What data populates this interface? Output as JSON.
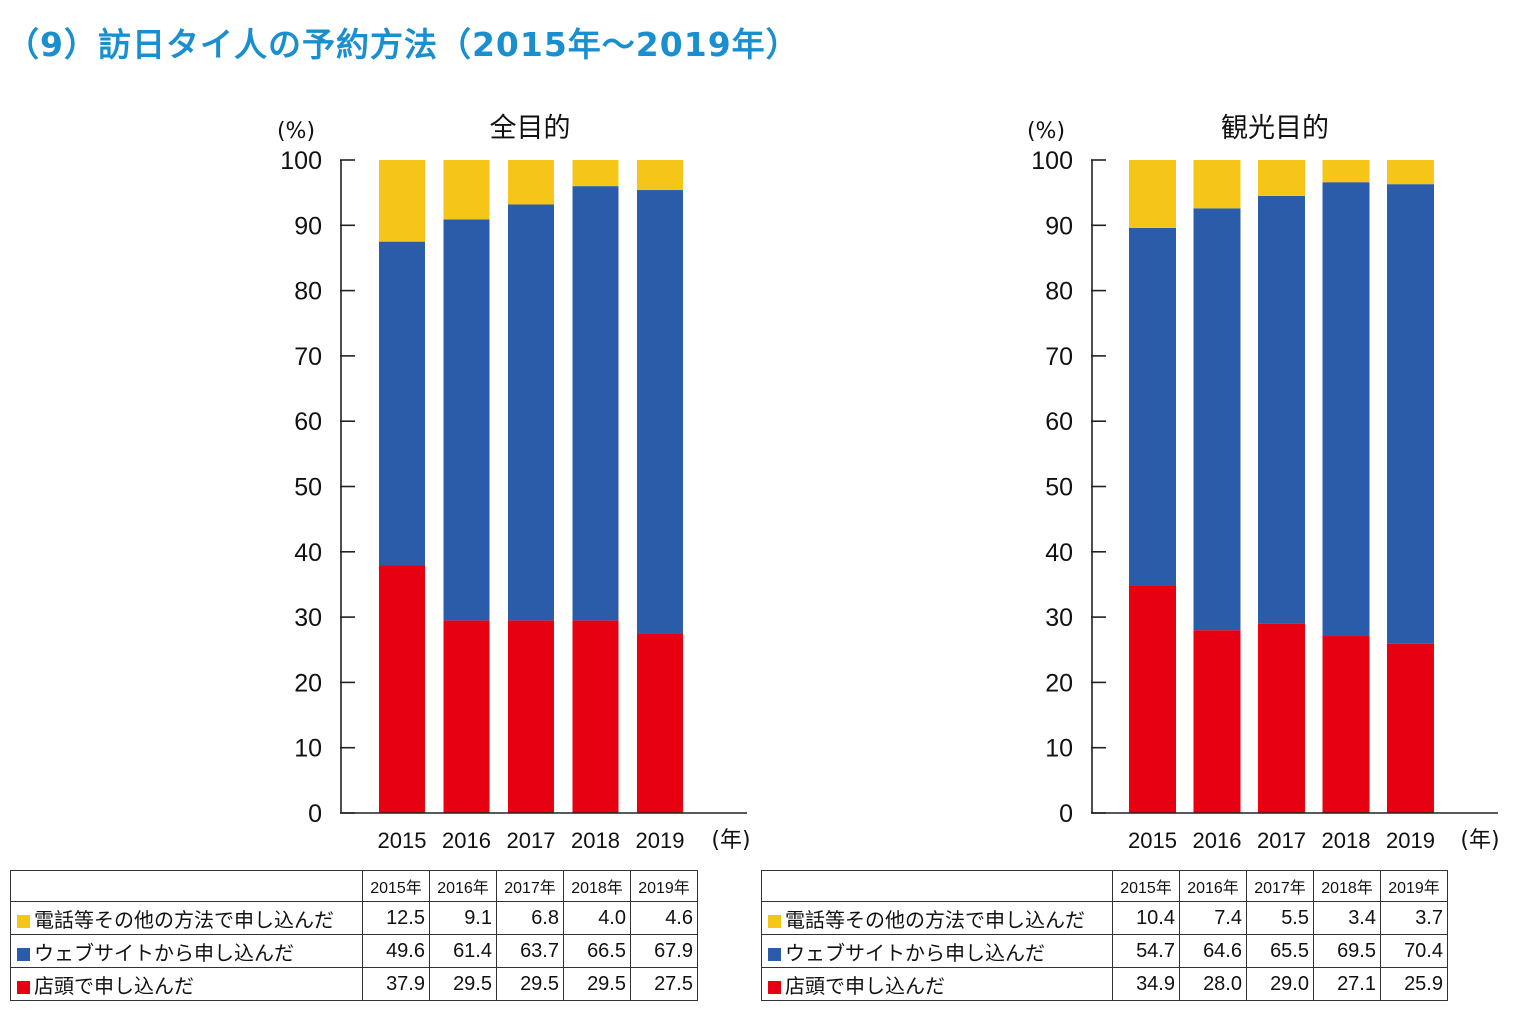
{
  "page": {
    "title": "（9）訪日タイ人の予約方法（2015年～2019年）"
  },
  "chart_data": [
    {
      "type": "bar",
      "stacked": true,
      "title": "全目的",
      "ylabel": "(%)",
      "xlabel": "(年)",
      "ylim": [
        0,
        100
      ],
      "yticks": [
        0,
        10,
        20,
        30,
        40,
        50,
        60,
        70,
        80,
        90,
        100
      ],
      "categories": [
        "2015",
        "2016",
        "2017",
        "2018",
        "2019"
      ],
      "table_headers": [
        "2015年",
        "2016年",
        "2017年",
        "2018年",
        "2019年"
      ],
      "series": [
        {
          "name": "店頭で申し込んだ",
          "color": "#e60012",
          "values": [
            "37.9",
            "29.5",
            "29.5",
            "29.5",
            "27.5"
          ]
        },
        {
          "name": "ウェブサイトから申し込んだ",
          "color": "#2a5caa",
          "values": [
            "49.6",
            "61.4",
            "63.7",
            "66.5",
            "67.9"
          ]
        },
        {
          "name": "電話等その他の方法で申し込んだ",
          "color": "#f5c518",
          "values": [
            "12.5",
            "9.1",
            "6.8",
            "4.0",
            "4.6"
          ]
        }
      ]
    },
    {
      "type": "bar",
      "stacked": true,
      "title": "観光目的",
      "ylabel": "(%)",
      "xlabel": "(年)",
      "ylim": [
        0,
        100
      ],
      "yticks": [
        0,
        10,
        20,
        30,
        40,
        50,
        60,
        70,
        80,
        90,
        100
      ],
      "categories": [
        "2015",
        "2016",
        "2017",
        "2018",
        "2019"
      ],
      "table_headers": [
        "2015年",
        "2016年",
        "2017年",
        "2018年",
        "2019年"
      ],
      "series": [
        {
          "name": "店頭で申し込んだ",
          "color": "#e60012",
          "values": [
            "34.9",
            "28.0",
            "29.0",
            "27.1",
            "25.9"
          ]
        },
        {
          "name": "ウェブサイトから申し込んだ",
          "color": "#2a5caa",
          "values": [
            "54.7",
            "64.6",
            "65.5",
            "69.5",
            "70.4"
          ]
        },
        {
          "name": "電話等その他の方法で申し込んだ",
          "color": "#f5c518",
          "values": [
            "10.4",
            "7.4",
            "5.5",
            "3.4",
            "3.7"
          ]
        }
      ]
    }
  ]
}
